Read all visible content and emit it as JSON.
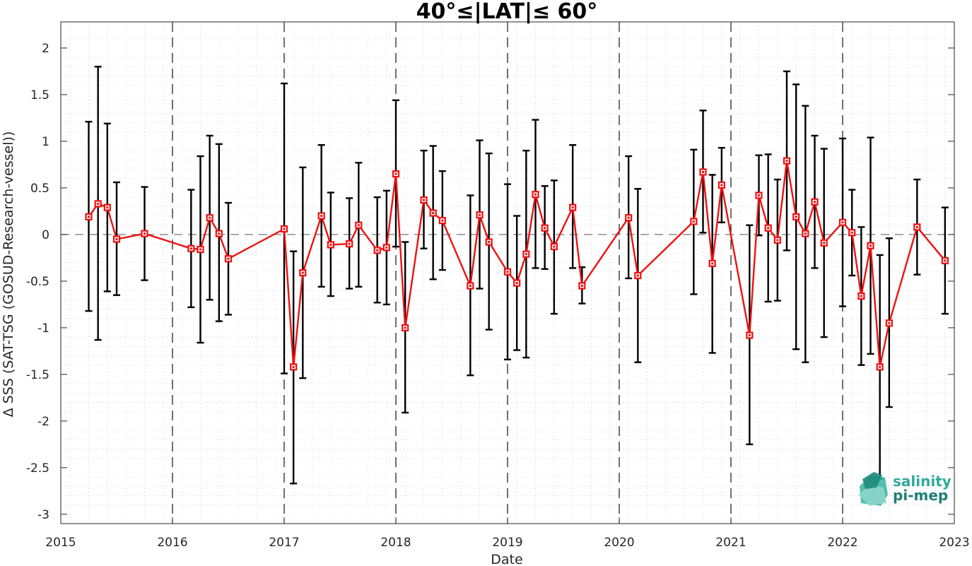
{
  "chart_data": {
    "type": "scatter",
    "title": "40°≤|LAT|≤ 60°",
    "xlabel": "Date",
    "ylabel": "Δ SSS (SAT-TSG (GOSUD-Research-vessel))",
    "xlim": [
      "2015-01-01",
      "2023-01-01"
    ],
    "ylim": [
      -3.1,
      2.28
    ],
    "xticks": [
      "2015",
      "2016",
      "2017",
      "2018",
      "2019",
      "2020",
      "2021",
      "2022",
      "2023"
    ],
    "yticks": [
      "-3",
      "-2.5",
      "-2",
      "-1.5",
      "-1",
      "-0.5",
      "0",
      "0.5",
      "1",
      "1.5",
      "2"
    ],
    "year_separators": "dashed vertical lines at each year boundary",
    "zero_line": 0,
    "grid": "dotted minor grid",
    "series": [
      {
        "color": "#ee1111",
        "marker": "square",
        "line": "solid",
        "errorbar_color": "#000000",
        "points": [
          {
            "x": "2015-04",
            "y": 0.19,
            "low": -0.82,
            "high": 1.21
          },
          {
            "x": "2015-05",
            "y": 0.33,
            "low": -1.13,
            "high": 1.8
          },
          {
            "x": "2015-06",
            "y": 0.29,
            "low": -0.61,
            "high": 1.19
          },
          {
            "x": "2015-07",
            "y": -0.05,
            "low": -0.65,
            "high": 0.56
          },
          {
            "x": "2015-10",
            "y": 0.01,
            "low": -0.49,
            "high": 0.51
          },
          {
            "x": "2016-03",
            "y": -0.15,
            "low": -0.78,
            "high": 0.48
          },
          {
            "x": "2016-04",
            "y": -0.16,
            "low": -1.16,
            "high": 0.84
          },
          {
            "x": "2016-05",
            "y": 0.18,
            "low": -0.7,
            "high": 1.06
          },
          {
            "x": "2016-06",
            "y": 0.01,
            "low": -0.93,
            "high": 0.97
          },
          {
            "x": "2016-07",
            "y": -0.26,
            "low": -0.86,
            "high": 0.34
          },
          {
            "x": "2017-01",
            "y": 0.06,
            "low": -1.49,
            "high": 1.62
          },
          {
            "x": "2017-02",
            "y": -1.42,
            "low": -2.67,
            "high": -0.18
          },
          {
            "x": "2017-03",
            "y": -0.41,
            "low": -1.54,
            "high": 0.72
          },
          {
            "x": "2017-05",
            "y": 0.2,
            "low": -0.56,
            "high": 0.96
          },
          {
            "x": "2017-06",
            "y": -0.11,
            "low": -0.66,
            "high": 0.45
          },
          {
            "x": "2017-08",
            "y": -0.1,
            "low": -0.58,
            "high": 0.39
          },
          {
            "x": "2017-09",
            "y": 0.1,
            "low": -0.56,
            "high": 0.77
          },
          {
            "x": "2017-11",
            "y": -0.17,
            "low": -0.73,
            "high": 0.4
          },
          {
            "x": "2017-12",
            "y": -0.14,
            "low": -0.75,
            "high": 0.47
          },
          {
            "x": "2018-01",
            "y": 0.65,
            "low": -0.13,
            "high": 1.44
          },
          {
            "x": "2018-02",
            "y": -1.0,
            "low": -1.91,
            "high": -0.08
          },
          {
            "x": "2018-04",
            "y": 0.37,
            "low": -0.15,
            "high": 0.9
          },
          {
            "x": "2018-05",
            "y": 0.23,
            "low": -0.48,
            "high": 0.95
          },
          {
            "x": "2018-06",
            "y": 0.15,
            "low": -0.38,
            "high": 0.68
          },
          {
            "x": "2018-09",
            "y": -0.55,
            "low": -1.51,
            "high": 0.42
          },
          {
            "x": "2018-10",
            "y": 0.21,
            "low": -0.58,
            "high": 1.01
          },
          {
            "x": "2018-11",
            "y": -0.08,
            "low": -1.02,
            "high": 0.87
          },
          {
            "x": "2019-01",
            "y": -0.4,
            "low": -1.34,
            "high": 0.54
          },
          {
            "x": "2019-02",
            "y": -0.52,
            "low": -1.24,
            "high": 0.2
          },
          {
            "x": "2019-03",
            "y": -0.21,
            "low": -1.32,
            "high": 0.9
          },
          {
            "x": "2019-04",
            "y": 0.43,
            "low": -0.36,
            "high": 1.23
          },
          {
            "x": "2019-05",
            "y": 0.07,
            "low": -0.37,
            "high": 0.52
          },
          {
            "x": "2019-06",
            "y": -0.13,
            "low": -0.85,
            "high": 0.58
          },
          {
            "x": "2019-08",
            "y": 0.29,
            "low": -0.36,
            "high": 0.96
          },
          {
            "x": "2019-09",
            "y": -0.55,
            "low": -0.74,
            "high": -0.35
          },
          {
            "x": "2020-02",
            "y": 0.18,
            "low": -0.47,
            "high": 0.84
          },
          {
            "x": "2020-03",
            "y": -0.44,
            "low": -1.37,
            "high": 0.49
          },
          {
            "x": "2020-09",
            "y": 0.14,
            "low": -0.64,
            "high": 0.91
          },
          {
            "x": "2020-10",
            "y": 0.67,
            "low": 0.02,
            "high": 1.33
          },
          {
            "x": "2020-11",
            "y": -0.31,
            "low": -1.27,
            "high": 0.64
          },
          {
            "x": "2020-12",
            "y": 0.53,
            "low": 0.13,
            "high": 0.93
          },
          {
            "x": "2021-03",
            "y": -1.08,
            "low": -2.25,
            "high": 0.1
          },
          {
            "x": "2021-04",
            "y": 0.42,
            "low": -0.01,
            "high": 0.85
          },
          {
            "x": "2021-05",
            "y": 0.07,
            "low": -0.72,
            "high": 0.86
          },
          {
            "x": "2021-06",
            "y": -0.06,
            "low": -0.71,
            "high": 0.59
          },
          {
            "x": "2021-07",
            "y": 0.79,
            "low": -0.17,
            "high": 1.75
          },
          {
            "x": "2021-08",
            "y": 0.19,
            "low": -1.23,
            "high": 1.61
          },
          {
            "x": "2021-09",
            "y": 0.01,
            "low": -1.37,
            "high": 1.38
          },
          {
            "x": "2021-10",
            "y": 0.35,
            "low": -0.36,
            "high": 1.06
          },
          {
            "x": "2021-11",
            "y": -0.09,
            "low": -1.1,
            "high": 0.92
          },
          {
            "x": "2022-01",
            "y": 0.13,
            "low": -0.77,
            "high": 1.03
          },
          {
            "x": "2022-02",
            "y": 0.02,
            "low": -0.44,
            "high": 0.48
          },
          {
            "x": "2022-03",
            "y": -0.66,
            "low": -1.4,
            "high": 0.08
          },
          {
            "x": "2022-04",
            "y": -0.12,
            "low": -1.28,
            "high": 1.04
          },
          {
            "x": "2022-05",
            "y": -1.42,
            "low": -2.62,
            "high": -0.22
          },
          {
            "x": "2022-06",
            "y": -0.95,
            "low": -1.85,
            "high": -0.04
          },
          {
            "x": "2022-09",
            "y": 0.08,
            "low": -0.43,
            "high": 0.59
          },
          {
            "x": "2022-12",
            "y": -0.28,
            "low": -0.85,
            "high": 0.29
          }
        ]
      }
    ]
  },
  "logo": {
    "line1": "salinity",
    "line2": "pi-mep",
    "color_top": "#2fa99a",
    "color_bottom": "#1f7f76"
  }
}
